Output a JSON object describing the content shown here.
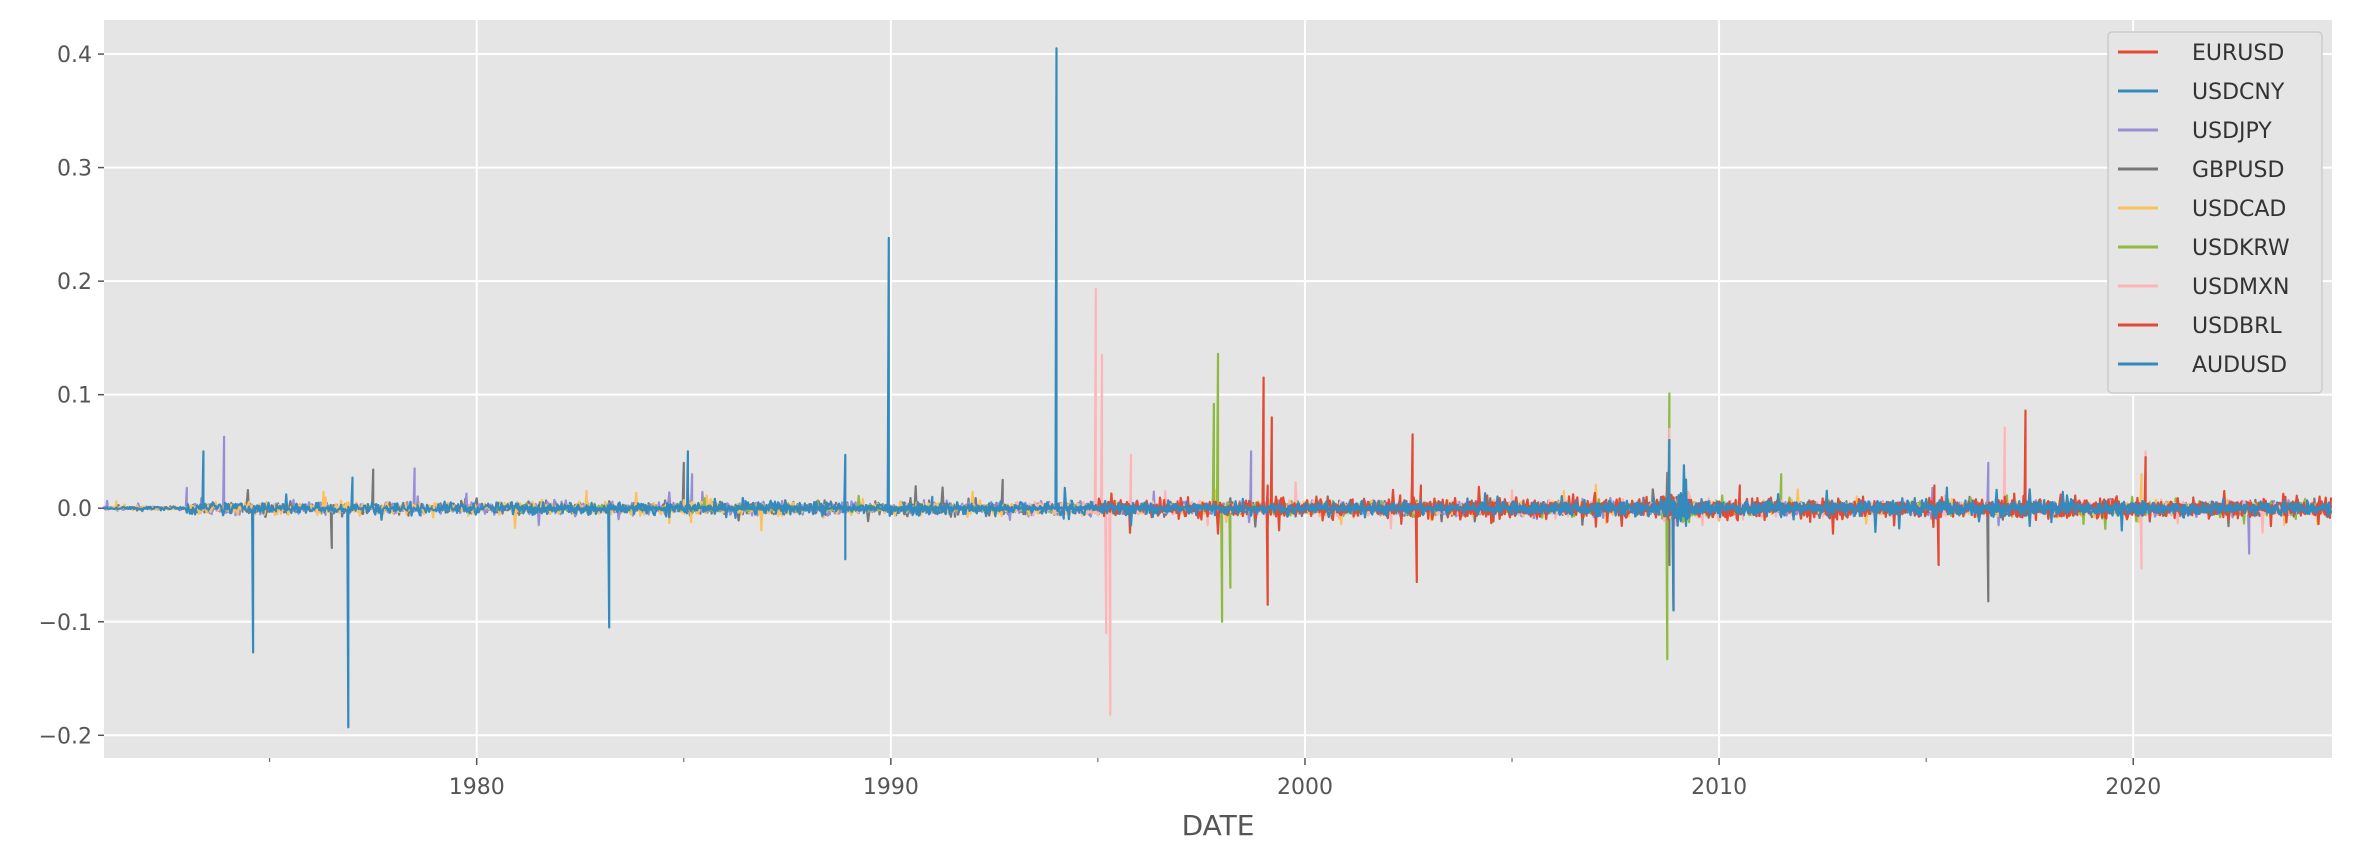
{
  "chart_data": {
    "type": "line",
    "title": "",
    "xlabel": "DATE",
    "ylabel": "",
    "xlim": [
      1971.0,
      2024.8
    ],
    "ylim": [
      -0.22,
      0.43
    ],
    "x_ticks": [
      1980,
      1990,
      2000,
      2010,
      2020
    ],
    "x_tick_labels": [
      "1980",
      "1990",
      "2000",
      "2010",
      "2020"
    ],
    "y_ticks": [
      -0.2,
      -0.1,
      0.0,
      0.1,
      0.2,
      0.3,
      0.4
    ],
    "y_tick_labels": [
      "−0.2",
      "−0.1",
      "0.0",
      "0.1",
      "0.2",
      "0.3",
      "0.4"
    ],
    "grid": true,
    "legend_position": "top-right",
    "series": [
      {
        "name": "EURUSD",
        "color": "#E24A33",
        "start": 1999.0,
        "end": 2024.8,
        "spikes": [
          [
            1999.1,
            0.02
          ],
          [
            2002.8,
            0.02
          ],
          [
            2008.8,
            0.03
          ],
          [
            2010.5,
            0.02
          ],
          [
            2015.2,
            0.02
          ]
        ]
      },
      {
        "name": "USDCNY",
        "color": "#348ABD",
        "start": 1981.0,
        "end": 2024.8,
        "spikes": [
          [
            1989.95,
            0.238
          ],
          [
            1994.0,
            0.405
          ],
          [
            1991.0,
            0.01
          ]
        ]
      },
      {
        "name": "USDJPY",
        "color": "#988ED5",
        "start": 1971.0,
        "end": 2024.8,
        "spikes": [
          [
            1973.0,
            0.018
          ],
          [
            1973.9,
            0.063
          ],
          [
            1978.5,
            0.035
          ],
          [
            1985.2,
            0.03
          ],
          [
            1998.7,
            0.05
          ],
          [
            2008.8,
            0.04
          ],
          [
            2016.5,
            0.04
          ],
          [
            2022.8,
            -0.04
          ]
        ]
      },
      {
        "name": "GBPUSD",
        "color": "#777777",
        "start": 1971.0,
        "end": 2024.8,
        "spikes": [
          [
            1976.5,
            -0.035
          ],
          [
            1977.5,
            0.034
          ],
          [
            1985.0,
            0.04
          ],
          [
            1992.7,
            0.025
          ],
          [
            2008.8,
            -0.05
          ],
          [
            2016.5,
            -0.082
          ]
        ]
      },
      {
        "name": "USDCAD",
        "color": "#FBC15E",
        "start": 1971.0,
        "end": 2024.8,
        "spikes": [
          [
            1971.3,
            0.006
          ],
          [
            2008.8,
            0.03
          ],
          [
            2020.2,
            0.03
          ]
        ]
      },
      {
        "name": "USDKRW",
        "color": "#8EBA42",
        "start": 1981.0,
        "end": 2024.8,
        "spikes": [
          [
            1997.9,
            0.136
          ],
          [
            1998.0,
            -0.1
          ],
          [
            1997.8,
            0.092
          ],
          [
            1998.2,
            -0.07
          ],
          [
            2008.8,
            0.101
          ],
          [
            2008.75,
            -0.133
          ],
          [
            2011.5,
            0.03
          ]
        ]
      },
      {
        "name": "USDMXN",
        "color": "#FFB5B8",
        "start": 1993.0,
        "end": 2024.8,
        "spikes": [
          [
            1994.95,
            0.193
          ],
          [
            1995.1,
            0.135
          ],
          [
            1995.3,
            -0.182
          ],
          [
            1995.2,
            -0.11
          ],
          [
            1995.8,
            0.047
          ],
          [
            2008.8,
            0.07
          ],
          [
            2016.9,
            0.071
          ],
          [
            2020.2,
            -0.053
          ],
          [
            2020.3,
            0.05
          ]
        ]
      },
      {
        "name": "USDBRL",
        "color": "#E24A33",
        "start": 1995.0,
        "end": 2024.8,
        "spikes": [
          [
            1999.0,
            0.115
          ],
          [
            1999.1,
            -0.085
          ],
          [
            1999.2,
            0.08
          ],
          [
            2002.6,
            0.065
          ],
          [
            2002.7,
            -0.065
          ],
          [
            2008.8,
            0.06
          ],
          [
            2008.9,
            -0.09
          ],
          [
            2017.4,
            0.086
          ],
          [
            2020.3,
            0.045
          ],
          [
            2015.3,
            -0.05
          ]
        ]
      },
      {
        "name": "AUDUSD",
        "color": "#348ABD",
        "start": 1971.0,
        "end": 2024.8,
        "spikes": [
          [
            1973.4,
            0.05
          ],
          [
            1974.6,
            -0.127
          ],
          [
            1976.9,
            -0.193
          ],
          [
            1977.0,
            0.027
          ],
          [
            1983.2,
            -0.105
          ],
          [
            1985.1,
            0.05
          ],
          [
            1988.9,
            0.047
          ],
          [
            1988.9,
            -0.045
          ],
          [
            2008.8,
            0.06
          ],
          [
            2008.9,
            -0.09
          ]
        ]
      }
    ]
  }
}
